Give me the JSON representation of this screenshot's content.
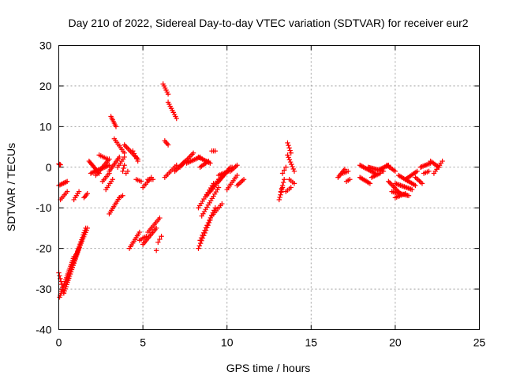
{
  "chart_data": {
    "type": "scatter",
    "title": "Day 210 of 2022, Sidereal Day-to-day VTEC variation (SDTVAR) for receiver eur2",
    "xlabel": "GPS time / hours",
    "ylabel": "SDTVAR / TECUs",
    "xlim": [
      0,
      25
    ],
    "ylim": [
      -40,
      30
    ],
    "xticks": [
      0,
      5,
      10,
      15,
      20,
      25
    ],
    "yticks": [
      -40,
      -30,
      -20,
      -10,
      0,
      10,
      20,
      30
    ],
    "grid": true,
    "marker": "plus",
    "series": [
      {
        "name": "eur2",
        "color": "#ff0000",
        "segments": [
          {
            "x0": 0.0,
            "x1": 0.1,
            "y0": 0.8,
            "y1": 0.6,
            "n": 4
          },
          {
            "x0": 0.0,
            "x1": 0.5,
            "y0": -4.5,
            "y1": -3.5,
            "n": 8
          },
          {
            "x0": 0.1,
            "x1": 0.5,
            "y0": -8.0,
            "y1": -6.0,
            "n": 6
          },
          {
            "x0": 0.0,
            "x1": 0.3,
            "y0": -26.0,
            "y1": -31.0,
            "n": 8
          },
          {
            "x0": 0.05,
            "x1": 0.9,
            "y0": -32.0,
            "y1": -22.0,
            "n": 22
          },
          {
            "x0": 0.3,
            "x1": 1.2,
            "y0": -31.0,
            "y1": -20.0,
            "n": 22
          },
          {
            "x0": 0.5,
            "x1": 1.6,
            "y0": -28.0,
            "y1": -15.0,
            "n": 24
          },
          {
            "x0": 0.8,
            "x1": 1.7,
            "y0": -24.0,
            "y1": -15.0,
            "n": 18
          },
          {
            "x0": 0.9,
            "x1": 1.2,
            "y0": -8.0,
            "y1": -6.0,
            "n": 5
          },
          {
            "x0": 1.5,
            "x1": 1.7,
            "y0": -7.5,
            "y1": -6.5,
            "n": 4
          },
          {
            "x0": 1.8,
            "x1": 2.4,
            "y0": 1.5,
            "y1": -1.5,
            "n": 12
          },
          {
            "x0": 1.9,
            "x1": 3.0,
            "y0": -1.5,
            "y1": 0.5,
            "n": 16
          },
          {
            "x0": 2.2,
            "x1": 3.0,
            "y0": -2.0,
            "y1": 2.0,
            "n": 12
          },
          {
            "x0": 2.4,
            "x1": 2.9,
            "y0": 3.0,
            "y1": 2.0,
            "n": 6
          },
          {
            "x0": 2.6,
            "x1": 3.0,
            "y0": -3.5,
            "y1": -1.5,
            "n": 6
          },
          {
            "x0": 2.8,
            "x1": 3.2,
            "y0": -5.5,
            "y1": -3.0,
            "n": 6
          },
          {
            "x0": 3.0,
            "x1": 3.6,
            "y0": -1.0,
            "y1": 2.5,
            "n": 10
          },
          {
            "x0": 3.1,
            "x1": 3.4,
            "y0": 12.5,
            "y1": 10.0,
            "n": 7
          },
          {
            "x0": 3.3,
            "x1": 3.9,
            "y0": 7.0,
            "y1": 3.5,
            "n": 9
          },
          {
            "x0": 3.5,
            "x1": 3.9,
            "y0": 0.0,
            "y1": 2.5,
            "n": 6
          },
          {
            "x0": 3.9,
            "x1": 4.7,
            "y0": 5.5,
            "y1": 2.0,
            "n": 12
          },
          {
            "x0": 4.4,
            "x1": 4.7,
            "y0": 4.0,
            "y1": 1.5,
            "n": 5
          },
          {
            "x0": 3.0,
            "x1": 3.6,
            "y0": -11.5,
            "y1": -7.5,
            "n": 10
          },
          {
            "x0": 3.6,
            "x1": 3.8,
            "y0": -7.5,
            "y1": -7.0,
            "n": 3
          },
          {
            "x0": 3.8,
            "x1": 3.9,
            "y0": -1.0,
            "y1": 0.5,
            "n": 3
          },
          {
            "x0": 4.0,
            "x1": 4.1,
            "y0": -1.5,
            "y1": -1.0,
            "n": 2
          },
          {
            "x0": 4.2,
            "x1": 4.8,
            "y0": -20.0,
            "y1": -16.0,
            "n": 10
          },
          {
            "x0": 4.8,
            "x1": 5.2,
            "y0": -18.0,
            "y1": -17.0,
            "n": 5
          },
          {
            "x0": 4.6,
            "x1": 4.9,
            "y0": -3.0,
            "y1": -3.5,
            "n": 4
          },
          {
            "x0": 5.0,
            "x1": 5.5,
            "y0": -5.0,
            "y1": -2.5,
            "n": 7
          },
          {
            "x0": 5.3,
            "x1": 5.6,
            "y0": -3.0,
            "y1": -3.0,
            "n": 4
          },
          {
            "x0": 5.0,
            "x1": 5.8,
            "y0": -19.0,
            "y1": -15.0,
            "n": 12
          },
          {
            "x0": 5.3,
            "x1": 6.0,
            "y0": -16.0,
            "y1": -12.5,
            "n": 10
          },
          {
            "x0": 5.9,
            "x1": 6.1,
            "y0": -18.5,
            "y1": -17.0,
            "n": 3
          },
          {
            "x0": 5.8,
            "x1": 5.8,
            "y0": -20.5,
            "y1": -20.5,
            "n": 1
          },
          {
            "x0": 6.2,
            "x1": 6.5,
            "y0": 20.5,
            "y1": 18.0,
            "n": 6
          },
          {
            "x0": 6.5,
            "x1": 7.0,
            "y0": 16.0,
            "y1": 12.0,
            "n": 9
          },
          {
            "x0": 6.3,
            "x1": 6.5,
            "y0": 6.5,
            "y1": 5.5,
            "n": 4
          },
          {
            "x0": 6.3,
            "x1": 7.0,
            "y0": -2.5,
            "y1": 0.5,
            "n": 9
          },
          {
            "x0": 6.9,
            "x1": 7.5,
            "y0": -1.0,
            "y1": 1.5,
            "n": 9
          },
          {
            "x0": 7.2,
            "x1": 8.0,
            "y0": 0.0,
            "y1": 3.5,
            "n": 12
          },
          {
            "x0": 7.6,
            "x1": 8.4,
            "y0": 1.0,
            "y1": 2.5,
            "n": 11
          },
          {
            "x0": 8.3,
            "x1": 9.0,
            "y0": 2.5,
            "y1": 1.0,
            "n": 10
          },
          {
            "x0": 8.4,
            "x1": 8.9,
            "y0": 0.0,
            "y1": 1.5,
            "n": 7
          },
          {
            "x0": 9.1,
            "x1": 9.3,
            "y0": 4.0,
            "y1": 4.0,
            "n": 3
          },
          {
            "x0": 8.3,
            "x1": 9.0,
            "y0": -20.0,
            "y1": -13.0,
            "n": 12
          },
          {
            "x0": 8.4,
            "x1": 9.3,
            "y0": -18.0,
            "y1": -10.0,
            "n": 14
          },
          {
            "x0": 8.5,
            "x1": 9.5,
            "y0": -12.0,
            "y1": -5.0,
            "n": 14
          },
          {
            "x0": 8.3,
            "x1": 9.2,
            "y0": -10.0,
            "y1": -4.0,
            "n": 12
          },
          {
            "x0": 8.8,
            "x1": 9.5,
            "y0": -7.0,
            "y1": -3.0,
            "n": 10
          },
          {
            "x0": 9.1,
            "x1": 9.7,
            "y0": -12.0,
            "y1": -9.0,
            "n": 8
          },
          {
            "x0": 9.0,
            "x1": 9.8,
            "y0": -6.0,
            "y1": -2.0,
            "n": 11
          },
          {
            "x0": 9.4,
            "x1": 10.2,
            "y0": -4.0,
            "y1": 0.0,
            "n": 12
          },
          {
            "x0": 9.5,
            "x1": 10.1,
            "y0": -2.0,
            "y1": -1.0,
            "n": 8
          },
          {
            "x0": 10.0,
            "x1": 10.6,
            "y0": -5.5,
            "y1": -2.0,
            "n": 9
          },
          {
            "x0": 10.2,
            "x1": 10.6,
            "y0": -1.0,
            "y1": 0.5,
            "n": 6
          },
          {
            "x0": 10.6,
            "x1": 11.0,
            "y0": -4.5,
            "y1": -3.0,
            "n": 6
          },
          {
            "x0": 9.9,
            "x1": 10.3,
            "y0": -1.5,
            "y1": 0.0,
            "n": 5
          },
          {
            "x0": 13.1,
            "x1": 13.3,
            "y0": -8.0,
            "y1": -5.0,
            "n": 6
          },
          {
            "x0": 13.2,
            "x1": 13.4,
            "y0": -6.0,
            "y1": -3.0,
            "n": 5
          },
          {
            "x0": 13.3,
            "x1": 13.5,
            "y0": -1.5,
            "y1": 0.0,
            "n": 3
          },
          {
            "x0": 13.6,
            "x1": 13.8,
            "y0": 6.0,
            "y1": 3.5,
            "n": 5
          },
          {
            "x0": 13.6,
            "x1": 14.0,
            "y0": 3.0,
            "y1": -1.0,
            "n": 8
          },
          {
            "x0": 13.7,
            "x1": 14.0,
            "y0": -3.0,
            "y1": -4.0,
            "n": 4
          },
          {
            "x0": 13.5,
            "x1": 13.8,
            "y0": -6.0,
            "y1": -5.0,
            "n": 4
          },
          {
            "x0": 16.6,
            "x1": 17.0,
            "y0": -2.5,
            "y1": -0.5,
            "n": 7
          },
          {
            "x0": 16.9,
            "x1": 17.2,
            "y0": -1.5,
            "y1": -1.0,
            "n": 4
          },
          {
            "x0": 17.1,
            "x1": 17.3,
            "y0": -3.5,
            "y1": -3.0,
            "n": 3
          },
          {
            "x0": 17.9,
            "x1": 18.8,
            "y0": 0.5,
            "y1": -1.5,
            "n": 14
          },
          {
            "x0": 17.9,
            "x1": 18.5,
            "y0": -2.5,
            "y1": -4.0,
            "n": 9
          },
          {
            "x0": 18.4,
            "x1": 19.3,
            "y0": 0.0,
            "y1": -1.0,
            "n": 14
          },
          {
            "x0": 18.6,
            "x1": 19.1,
            "y0": -2.5,
            "y1": -1.5,
            "n": 7
          },
          {
            "x0": 19.1,
            "x1": 19.6,
            "y0": -0.5,
            "y1": 0.5,
            "n": 8
          },
          {
            "x0": 19.5,
            "x1": 20.0,
            "y0": 0.5,
            "y1": -1.0,
            "n": 7
          },
          {
            "x0": 19.6,
            "x1": 20.3,
            "y0": -3.5,
            "y1": -6.5,
            "n": 11
          },
          {
            "x0": 19.8,
            "x1": 20.8,
            "y0": -6.0,
            "y1": -7.0,
            "n": 14
          },
          {
            "x0": 20.0,
            "x1": 21.0,
            "y0": -4.0,
            "y1": -5.5,
            "n": 14
          },
          {
            "x0": 20.2,
            "x1": 21.2,
            "y0": -2.0,
            "y1": -4.5,
            "n": 14
          },
          {
            "x0": 20.0,
            "x1": 20.6,
            "y0": -7.5,
            "y1": -6.5,
            "n": 8
          },
          {
            "x0": 20.6,
            "x1": 21.3,
            "y0": -3.0,
            "y1": -1.0,
            "n": 10
          },
          {
            "x0": 21.2,
            "x1": 21.6,
            "y0": -2.5,
            "y1": -4.0,
            "n": 6
          },
          {
            "x0": 21.5,
            "x1": 22.1,
            "y0": 0.0,
            "y1": 1.0,
            "n": 9
          },
          {
            "x0": 21.7,
            "x1": 22.0,
            "y0": -1.5,
            "y1": -1.0,
            "n": 4
          },
          {
            "x0": 22.1,
            "x1": 22.6,
            "y0": 1.5,
            "y1": 0.0,
            "n": 7
          },
          {
            "x0": 22.3,
            "x1": 22.8,
            "y0": -1.5,
            "y1": 1.5,
            "n": 7
          }
        ]
      }
    ]
  }
}
